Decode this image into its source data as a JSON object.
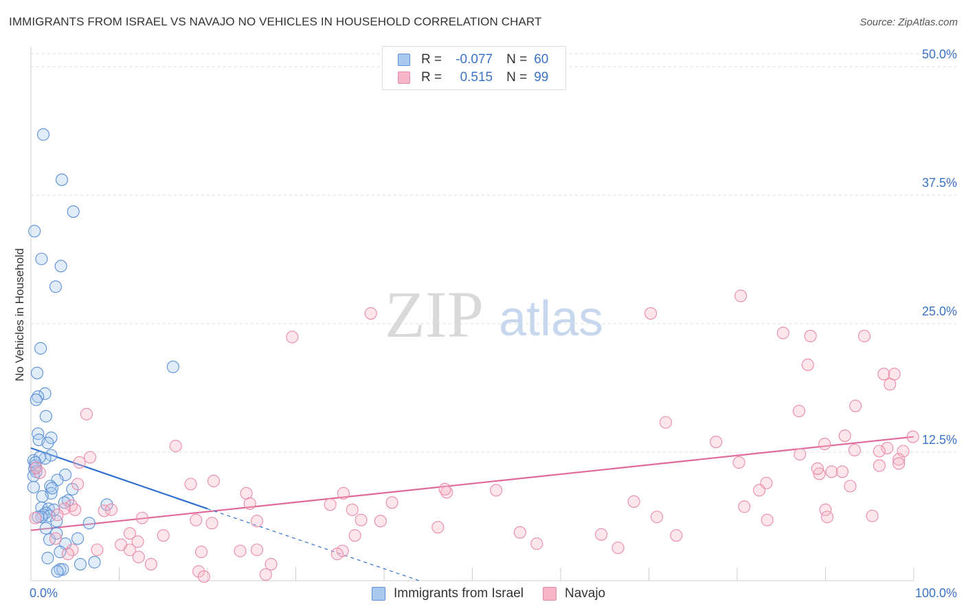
{
  "title": "IMMIGRANTS FROM ISRAEL VS NAVAJO NO VEHICLES IN HOUSEHOLD CORRELATION CHART",
  "source": "Source: ZipAtlas.com",
  "watermark": {
    "zip": "ZIP",
    "atlas": "atlas"
  },
  "colors": {
    "blue_fill": "#a9c8ef",
    "blue_stroke": "#5b8fd6",
    "blue_line": "#2f6fd1",
    "pink_fill": "#f7b6c9",
    "pink_stroke": "#e88aa8",
    "pink_line": "#e0699a",
    "tick_label": "#3a72c4",
    "grid": "#dddddd"
  },
  "legend": {
    "rows": [
      {
        "r_label": "R =",
        "r_value": "-0.077",
        "n_label": "N =",
        "n_value": "60",
        "series": "blue"
      },
      {
        "r_label": "R =",
        "r_value": "0.515",
        "n_label": "N =",
        "n_value": "99",
        "series": "pink"
      }
    ]
  },
  "bottom_legend": [
    "Immigrants from Israel",
    "Navajo"
  ],
  "chart_data": {
    "type": "scatter",
    "title": "IMMIGRANTS FROM ISRAEL VS NAVAJO NO VEHICLES IN HOUSEHOLD CORRELATION CHART",
    "xlabel": "",
    "ylabel": "No Vehicles in Household",
    "xlim": [
      0,
      100
    ],
    "ylim": [
      0,
      50
    ],
    "x_tick_labels": {
      "min": "0.0%",
      "max": "100.0%"
    },
    "y_ticks": [
      12.5,
      25.0,
      37.5,
      50.0
    ],
    "y_tick_labels": [
      "12.5%",
      "25.0%",
      "37.5%",
      "50.0%"
    ],
    "series": [
      {
        "name": "Immigrants from Israel",
        "color": "blue",
        "r": -0.077,
        "n": 60,
        "trend": {
          "x0": 0,
          "y0": 12.9,
          "x1": 20,
          "y1": 7.0,
          "dash_to_x": 44,
          "dash_to_y": 0
        },
        "points": [
          [
            1.4,
            43.4
          ],
          [
            3.5,
            39.0
          ],
          [
            4.8,
            35.9
          ],
          [
            0.4,
            34.0
          ],
          [
            1.2,
            31.3
          ],
          [
            3.4,
            30.6
          ],
          [
            2.8,
            28.6
          ],
          [
            1.1,
            22.6
          ],
          [
            16.1,
            20.8
          ],
          [
            0.7,
            20.2
          ],
          [
            1.6,
            18.2
          ],
          [
            0.8,
            17.9
          ],
          [
            0.6,
            17.6
          ],
          [
            1.7,
            16.0
          ],
          [
            0.8,
            14.3
          ],
          [
            2.3,
            13.9
          ],
          [
            0.9,
            13.7
          ],
          [
            1.9,
            13.4
          ],
          [
            2.3,
            12.2
          ],
          [
            1.6,
            11.9
          ],
          [
            0.3,
            11.7
          ],
          [
            0.5,
            11.2
          ],
          [
            0.4,
            10.9
          ],
          [
            0.6,
            10.6
          ],
          [
            3.9,
            10.3
          ],
          [
            3.0,
            9.8
          ],
          [
            2.2,
            9.2
          ],
          [
            0.3,
            9.1
          ],
          [
            4.7,
            8.9
          ],
          [
            2.3,
            8.5
          ],
          [
            1.3,
            8.2
          ],
          [
            4.2,
            7.8
          ],
          [
            3.8,
            7.6
          ],
          [
            8.6,
            7.4
          ],
          [
            1.2,
            7.1
          ],
          [
            2.0,
            7.0
          ],
          [
            2.6,
            6.9
          ],
          [
            1.7,
            6.6
          ],
          [
            1.4,
            6.4
          ],
          [
            2.1,
            6.3
          ],
          [
            1.2,
            6.2
          ],
          [
            0.8,
            6.2
          ],
          [
            2.9,
            5.8
          ],
          [
            6.6,
            5.6
          ],
          [
            1.7,
            5.1
          ],
          [
            2.9,
            4.6
          ],
          [
            5.3,
            4.1
          ],
          [
            2.1,
            4.0
          ],
          [
            3.9,
            3.6
          ],
          [
            3.3,
            2.8
          ],
          [
            1.9,
            2.2
          ],
          [
            7.2,
            1.8
          ],
          [
            5.6,
            1.6
          ],
          [
            3.3,
            1.1
          ],
          [
            3.6,
            1.1
          ],
          [
            3.0,
            0.9
          ],
          [
            0.3,
            10.2
          ],
          [
            1.0,
            12.0
          ],
          [
            2.4,
            9.0
          ],
          [
            0.5,
            11.5
          ]
        ]
      },
      {
        "name": "Navajo",
        "color": "pink",
        "r": 0.515,
        "n": 99,
        "trend": {
          "x0": 0,
          "y0": 4.9,
          "x1": 100,
          "y1": 14.0
        },
        "points": [
          [
            80.4,
            27.7
          ],
          [
            38.5,
            26.0
          ],
          [
            70.2,
            26.0
          ],
          [
            29.6,
            23.7
          ],
          [
            85.2,
            24.1
          ],
          [
            88.3,
            23.8
          ],
          [
            94.4,
            23.8
          ],
          [
            88.0,
            21.0
          ],
          [
            96.6,
            20.1
          ],
          [
            97.8,
            20.1
          ],
          [
            97.3,
            19.1
          ],
          [
            6.3,
            16.2
          ],
          [
            87.0,
            16.5
          ],
          [
            93.4,
            17.0
          ],
          [
            71.9,
            15.4
          ],
          [
            99.9,
            14.0
          ],
          [
            92.2,
            14.1
          ],
          [
            77.6,
            13.5
          ],
          [
            16.4,
            13.1
          ],
          [
            89.9,
            13.3
          ],
          [
            93.3,
            12.7
          ],
          [
            97.0,
            12.9
          ],
          [
            96.1,
            12.6
          ],
          [
            87.1,
            12.3
          ],
          [
            6.7,
            12.0
          ],
          [
            98.8,
            12.6
          ],
          [
            98.3,
            11.8
          ],
          [
            5.5,
            11.5
          ],
          [
            96.1,
            11.2
          ],
          [
            80.2,
            11.5
          ],
          [
            98.3,
            11.4
          ],
          [
            90.7,
            10.6
          ],
          [
            89.3,
            10.4
          ],
          [
            91.9,
            10.6
          ],
          [
            89.1,
            10.9
          ],
          [
            20.7,
            9.7
          ],
          [
            18.1,
            9.4
          ],
          [
            5.3,
            9.4
          ],
          [
            83.3,
            9.5
          ],
          [
            92.8,
            9.2
          ],
          [
            82.5,
            8.8
          ],
          [
            52.7,
            8.8
          ],
          [
            47.1,
            8.6
          ],
          [
            46.9,
            8.9
          ],
          [
            24.4,
            8.5
          ],
          [
            35.4,
            8.5
          ],
          [
            68.3,
            7.7
          ],
          [
            40.9,
            7.6
          ],
          [
            33.9,
            7.4
          ],
          [
            4.6,
            7.3
          ],
          [
            24.8,
            7.5
          ],
          [
            80.8,
            7.2
          ],
          [
            8.3,
            6.8
          ],
          [
            90.0,
            6.9
          ],
          [
            36.4,
            6.9
          ],
          [
            3.8,
            7.0
          ],
          [
            3.0,
            6.4
          ],
          [
            9.1,
            6.9
          ],
          [
            95.3,
            6.3
          ],
          [
            70.9,
            6.2
          ],
          [
            83.4,
            5.9
          ],
          [
            12.6,
            6.1
          ],
          [
            18.7,
            5.9
          ],
          [
            39.6,
            5.8
          ],
          [
            5.0,
            6.9
          ],
          [
            25.6,
            5.8
          ],
          [
            90.2,
            6.2
          ],
          [
            20.5,
            5.6
          ],
          [
            37.4,
            5.9
          ],
          [
            46.1,
            5.2
          ],
          [
            11.2,
            4.6
          ],
          [
            15.0,
            4.4
          ],
          [
            0.5,
            6.1
          ],
          [
            2.8,
            4.1
          ],
          [
            55.4,
            4.7
          ],
          [
            64.6,
            4.5
          ],
          [
            36.7,
            4.4
          ],
          [
            73.1,
            4.4
          ],
          [
            12.1,
            3.8
          ],
          [
            10.2,
            3.5
          ],
          [
            57.3,
            3.6
          ],
          [
            4.7,
            3.0
          ],
          [
            7.5,
            3.0
          ],
          [
            11.2,
            3.0
          ],
          [
            19.3,
            2.8
          ],
          [
            23.7,
            2.9
          ],
          [
            25.6,
            3.0
          ],
          [
            35.3,
            2.9
          ],
          [
            34.7,
            2.6
          ],
          [
            66.5,
            3.2
          ],
          [
            12.2,
            2.3
          ],
          [
            4.2,
            2.6
          ],
          [
            13.6,
            1.6
          ],
          [
            27.2,
            1.6
          ],
          [
            19.0,
            0.9
          ],
          [
            26.6,
            0.6
          ],
          [
            19.6,
            0.4
          ],
          [
            1.0,
            10.5
          ],
          [
            0.6,
            11.0
          ]
        ]
      }
    ]
  }
}
